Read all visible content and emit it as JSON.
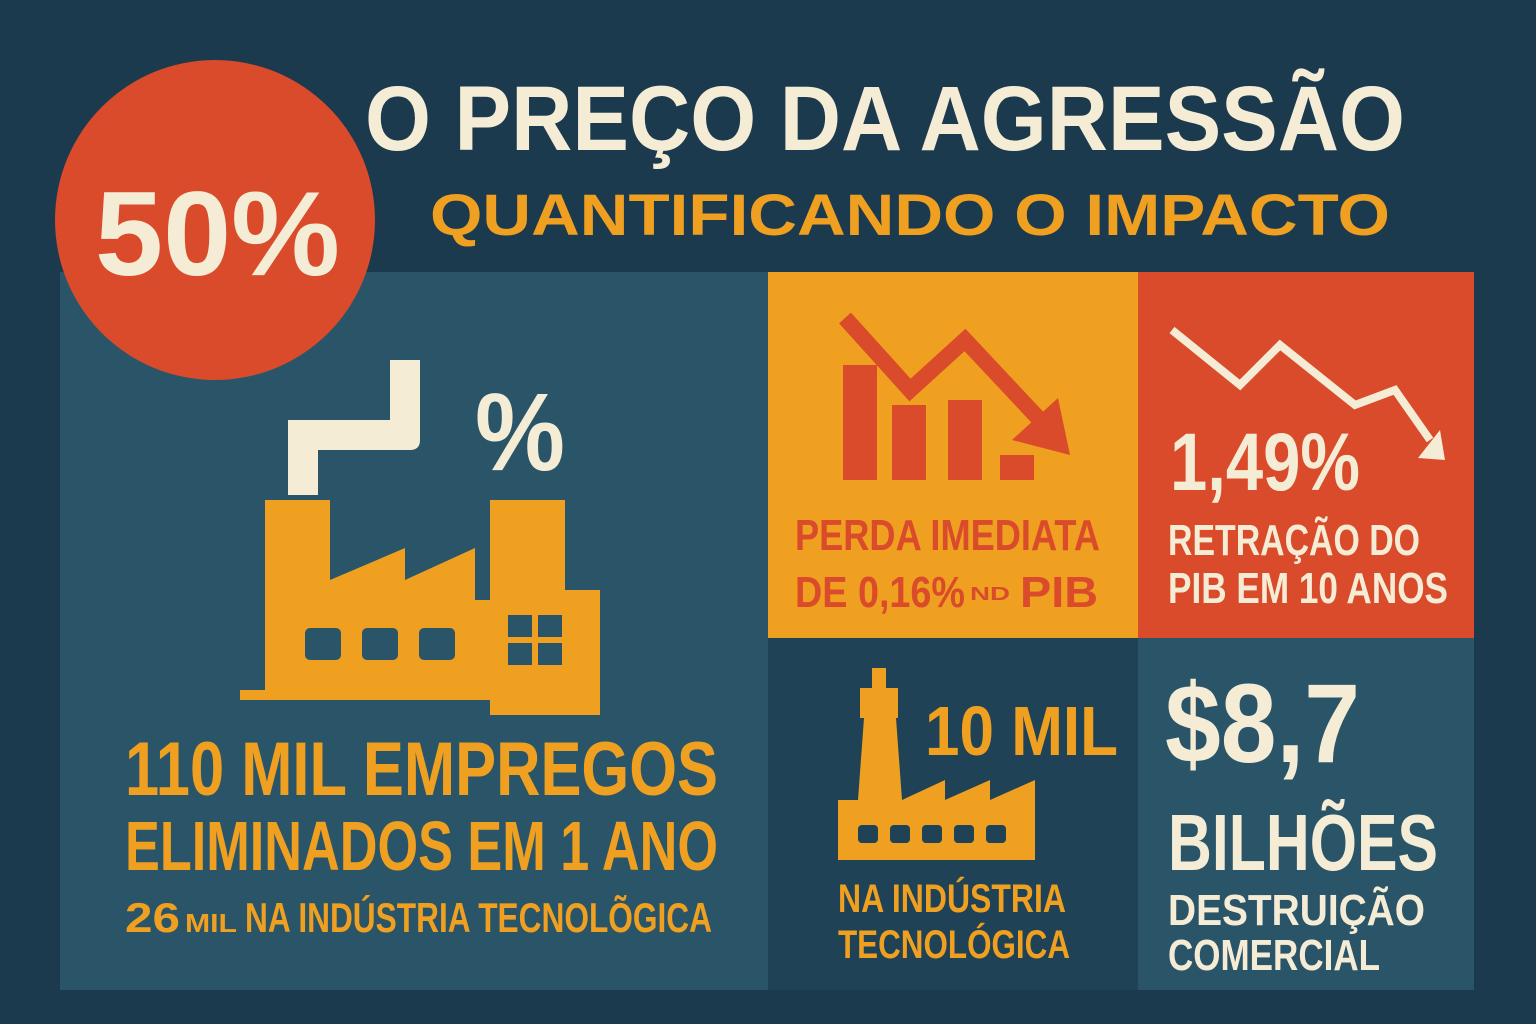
{
  "badge": "50%",
  "header": {
    "title": "O PREÇO DA AGRESSÃO",
    "subtitle": "QUANTIFICANDO O IMPACTO"
  },
  "jobs_panel": {
    "icon_label": "%",
    "headline": [
      "110 MIL EMPREGOS",
      "ELIMINADOS EM 1 ANO"
    ],
    "detail": {
      "number": "26",
      "unit": "MIL",
      "text": "NA INDÚSTRIA TECNOLÕGICA"
    }
  },
  "loss_panel": {
    "line1": "PERDA IMEDIATA",
    "line2": "DE 0,16%",
    "superscript": "ND",
    "line2_end": "PIB"
  },
  "gdp_panel": {
    "value": "1,49%",
    "lines": [
      "RETRAÇÃO DO",
      "PIB EM 10 ANOS"
    ]
  },
  "tech_panel": {
    "value": "10 MIL",
    "lines": [
      "NA INDÚSTRIA",
      "TECNOLÓGICA"
    ]
  },
  "trade_panel": {
    "value": "$8,7",
    "unit": "BILHÕES",
    "lines": [
      "DESTRUIÇÃO",
      "COMERCIAL"
    ]
  }
}
